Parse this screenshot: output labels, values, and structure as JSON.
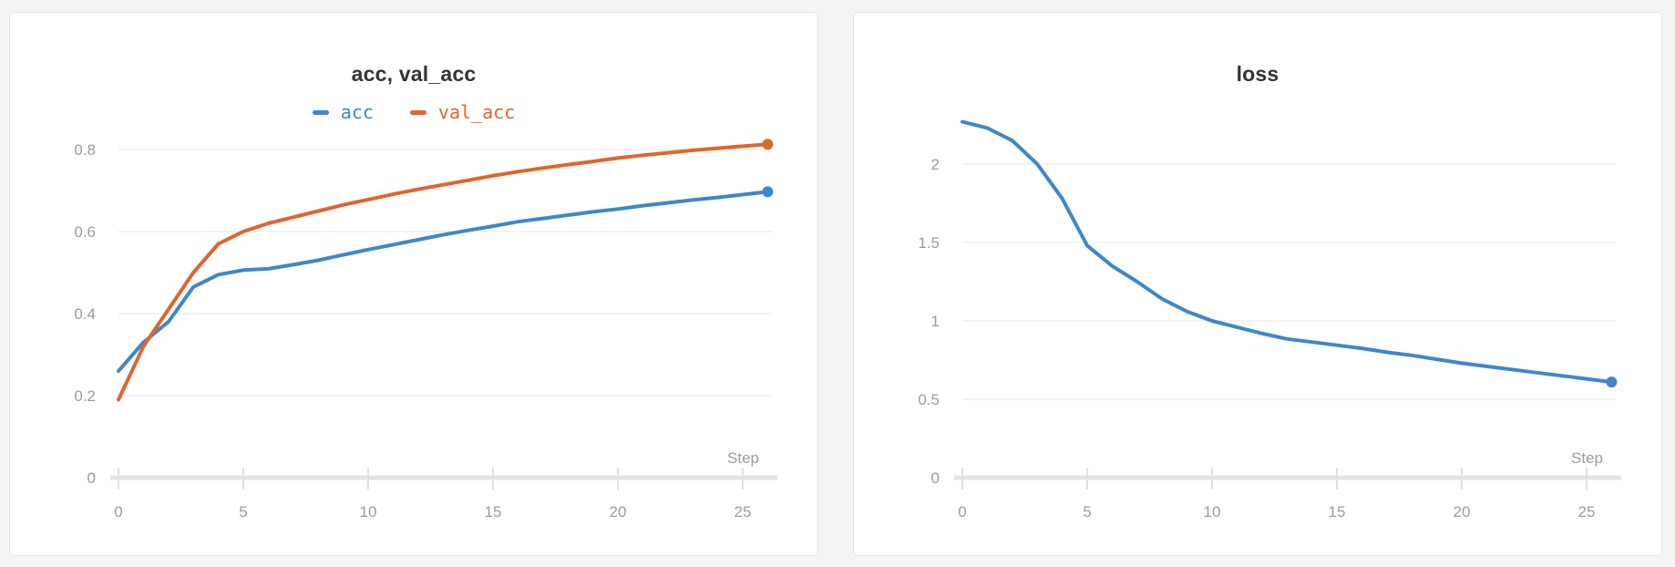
{
  "page": {
    "background": "#f4f4f5"
  },
  "colors": {
    "grid": "#ececec",
    "axis": "#e2e2e2",
    "tick": "#e0e0e0",
    "tick_label": "#9b9b9b",
    "title": "#333333",
    "panel_bg": "#ffffff",
    "panel_border": "#e3e3e3",
    "accent_blue": "#3e87c9",
    "accent_orange": "#e1642e"
  },
  "chart_data": [
    {
      "type": "line",
      "title": "acc, val_acc",
      "xlabel": "Step",
      "grid": true,
      "legend_position": "top",
      "xlim": [
        0,
        26
      ],
      "ylim": [
        0,
        0.89
      ],
      "xticks": [
        0,
        5,
        10,
        15,
        20,
        25
      ],
      "yticks": [
        0,
        0.2,
        0.4,
        0.6,
        0.8
      ],
      "x": [
        0,
        1,
        2,
        3,
        4,
        5,
        6,
        7,
        8,
        9,
        10,
        11,
        12,
        13,
        14,
        15,
        16,
        17,
        18,
        19,
        20,
        21,
        22,
        23,
        24,
        25,
        26
      ],
      "series": [
        {
          "name": "acc",
          "color": "#3e87c9",
          "end_marker": true,
          "values": [
            0.26,
            0.33,
            0.38,
            0.465,
            0.495,
            0.506,
            0.509,
            0.519,
            0.53,
            0.543,
            0.556,
            0.568,
            0.58,
            0.592,
            0.603,
            0.613,
            0.624,
            0.632,
            0.64,
            0.648,
            0.655,
            0.663,
            0.67,
            0.677,
            0.683,
            0.69,
            0.697
          ]
        },
        {
          "name": "val_acc",
          "color": "#e1642e",
          "end_marker": true,
          "values": [
            0.19,
            0.32,
            0.41,
            0.5,
            0.57,
            0.6,
            0.62,
            0.635,
            0.65,
            0.665,
            0.678,
            0.691,
            0.703,
            0.714,
            0.725,
            0.736,
            0.746,
            0.755,
            0.763,
            0.771,
            0.779,
            0.786,
            0.792,
            0.798,
            0.803,
            0.808,
            0.813
          ]
        }
      ]
    },
    {
      "type": "line",
      "title": "loss",
      "xlabel": "Step",
      "grid": true,
      "legend_position": "none",
      "xlim": [
        0,
        26
      ],
      "ylim": [
        0,
        2.37
      ],
      "xticks": [
        0,
        5,
        10,
        15,
        20,
        25
      ],
      "yticks": [
        0,
        0.5,
        1,
        1.5,
        2
      ],
      "x": [
        0,
        1,
        2,
        3,
        4,
        5,
        6,
        7,
        8,
        9,
        10,
        11,
        12,
        13,
        14,
        15,
        16,
        17,
        18,
        19,
        20,
        21,
        22,
        23,
        24,
        25,
        26
      ],
      "series": [
        {
          "name": "loss",
          "color": "#3e87c9",
          "end_marker": true,
          "values": [
            2.27,
            2.23,
            2.15,
            2.0,
            1.78,
            1.48,
            1.35,
            1.25,
            1.14,
            1.06,
            1.0,
            0.96,
            0.92,
            0.885,
            0.865,
            0.845,
            0.825,
            0.8,
            0.78,
            0.755,
            0.73,
            0.71,
            0.69,
            0.67,
            0.65,
            0.63,
            0.61
          ]
        }
      ]
    }
  ]
}
